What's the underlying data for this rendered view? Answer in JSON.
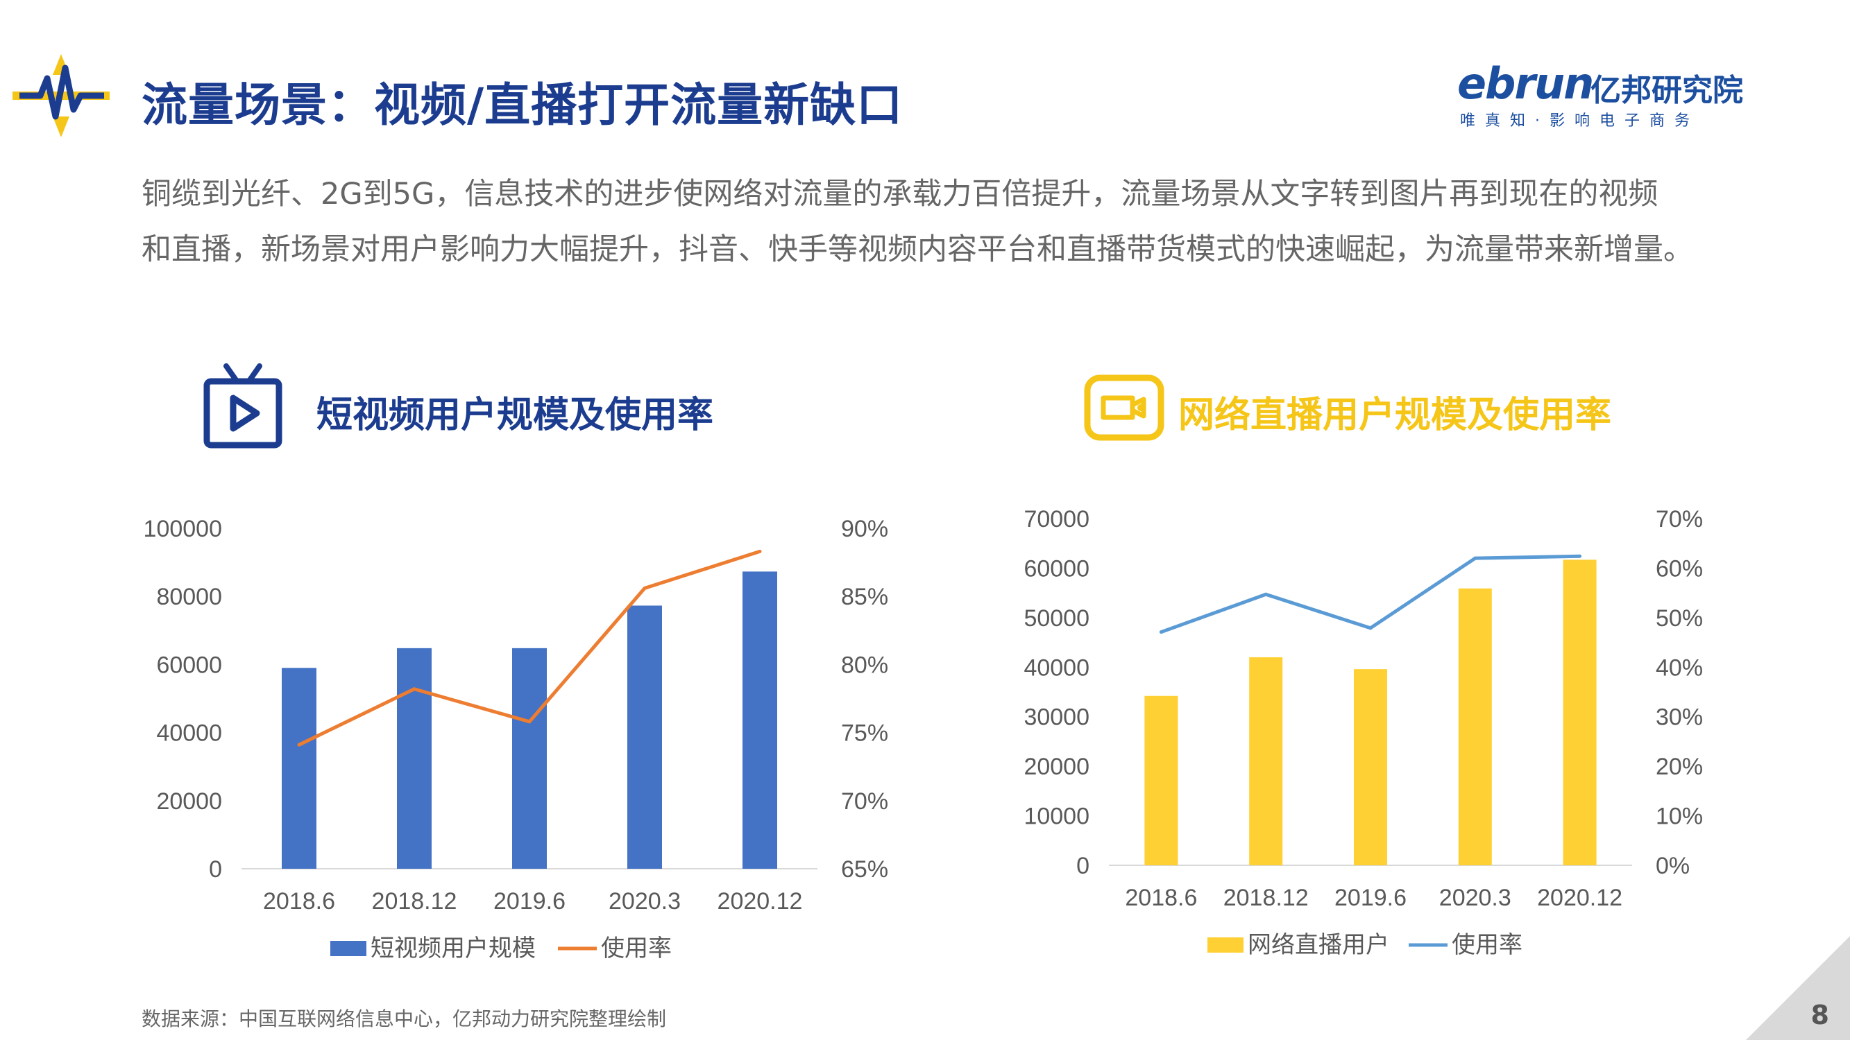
{
  "header": {
    "title": "流量场景：视频/直播打开流量新缺口",
    "brand_main": "ebrun",
    "brand_cn": "亿邦研究院",
    "brand_sub": "唯真知·影响电子商务"
  },
  "description": [
    "铜缆到光纤、2G到5G，信息技术的进步使网络对流量的承载力百倍提升，流量场景从文字转到图片再到现在的视频",
    "和直播，新场景对用户影响力大幅提升，抖音、快手等视频内容平台和直播带货模式的快速崛起，为流量带来新增量。"
  ],
  "panels": {
    "left_title": "短视频用户规模及使用率",
    "right_title": "网络直播用户规模及使用率"
  },
  "colors": {
    "title_blue": "#1c3d8f",
    "bar_blue": "#4472c4",
    "line_orange": "#ed7d31",
    "bar_yellow": "#ffd033",
    "line_blue": "#5b9bd5",
    "icon_yellow": "#f5c518"
  },
  "chart_data": [
    {
      "type": "bar",
      "title": "短视频用户规模及使用率",
      "categories": [
        "2018.6",
        "2018.12",
        "2019.6",
        "2020.3",
        "2020.12"
      ],
      "series": [
        {
          "name": "短视频用户规模",
          "type": "bar",
          "axis": "left",
          "values": [
            59000,
            64800,
            64800,
            77300,
            87300
          ]
        },
        {
          "name": "使用率",
          "type": "line",
          "axis": "right",
          "values": [
            74.1,
            78.2,
            75.8,
            85.6,
            88.3
          ]
        }
      ],
      "ylim_left": [
        0,
        100000
      ],
      "ylim_right": [
        65,
        90
      ],
      "yticks_left": [
        "100000",
        "80000",
        "60000",
        "40000",
        "20000",
        "0"
      ],
      "yticks_right": [
        "90%",
        "85%",
        "80%",
        "75%",
        "70%",
        "65%"
      ],
      "legend": "bottom",
      "grid": false
    },
    {
      "type": "bar",
      "title": "网络直播用户规模及使用率",
      "categories": [
        "2018.6",
        "2018.12",
        "2019.6",
        "2020.3",
        "2020.12"
      ],
      "series": [
        {
          "name": "网络直播用户",
          "type": "bar",
          "axis": "left",
          "values": [
            34200,
            42000,
            39600,
            55900,
            61700
          ]
        },
        {
          "name": "使用率",
          "type": "line",
          "axis": "right",
          "values": [
            47.1,
            54.7,
            47.9,
            62.0,
            62.4
          ]
        }
      ],
      "ylim_left": [
        0,
        70000
      ],
      "ylim_right": [
        0,
        70
      ],
      "yticks_left": [
        "70000",
        "60000",
        "50000",
        "40000",
        "30000",
        "20000",
        "10000",
        "0"
      ],
      "yticks_right": [
        "70%",
        "60%",
        "50%",
        "40%",
        "30%",
        "20%",
        "10%",
        "0%"
      ],
      "legend": "bottom",
      "grid": false
    }
  ],
  "footer": {
    "source": "数据来源：中国互联网络信息中心，亿邦动力研究院整理绘制",
    "page_number": "8"
  }
}
